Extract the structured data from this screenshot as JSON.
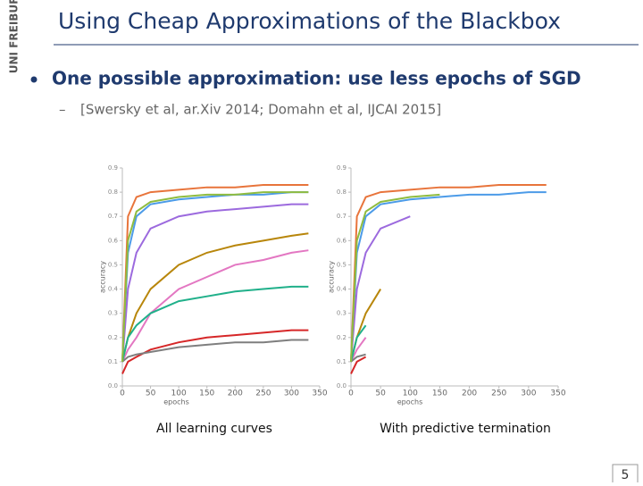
{
  "header": {
    "title": "Using Cheap Approximations of the Blackbox",
    "logo": "UNI FREIBURG"
  },
  "bullets": [
    {
      "text": "One possible approximation: use less epochs of SGD",
      "sub": "[Swersky et al, ar.Xiv 2014; Domahn et al, IJCAI 2015]"
    }
  ],
  "chart_data": [
    {
      "type": "line",
      "caption": "All learning curves",
      "xlabel": "epochs",
      "ylabel": "accuracy",
      "xlim": [
        0,
        350
      ],
      "ylim": [
        0,
        0.9
      ],
      "xticks": [
        0,
        50,
        100,
        150,
        200,
        250,
        300,
        350
      ],
      "yticks": [
        {
          "value": 0,
          "label": "0.0"
        },
        0.1,
        0.2,
        0.3,
        0.4,
        0.5,
        0.6,
        0.7,
        0.8,
        0.9
      ],
      "x": [
        0,
        10,
        25,
        50,
        100,
        150,
        200,
        250,
        300,
        330
      ],
      "series": [
        {
          "color": "#e8743b",
          "values": [
            0.1,
            0.7,
            0.78,
            0.8,
            0.81,
            0.82,
            0.82,
            0.83,
            0.83,
            0.83
          ]
        },
        {
          "color": "#4c9be8",
          "values": [
            0.1,
            0.55,
            0.7,
            0.75,
            0.77,
            0.78,
            0.79,
            0.79,
            0.8,
            0.8
          ]
        },
        {
          "color": "#9c6ade",
          "values": [
            0.1,
            0.4,
            0.55,
            0.65,
            0.7,
            0.72,
            0.73,
            0.74,
            0.75,
            0.75
          ]
        },
        {
          "color": "#b8860b",
          "values": [
            0.1,
            0.2,
            0.3,
            0.4,
            0.5,
            0.55,
            0.58,
            0.6,
            0.62,
            0.63
          ]
        },
        {
          "color": "#e377c2",
          "values": [
            0.1,
            0.15,
            0.2,
            0.3,
            0.4,
            0.45,
            0.5,
            0.52,
            0.55,
            0.56
          ]
        },
        {
          "color": "#20b08a",
          "values": [
            0.1,
            0.2,
            0.25,
            0.3,
            0.35,
            0.37,
            0.39,
            0.4,
            0.41,
            0.41
          ]
        },
        {
          "color": "#d62728",
          "values": [
            0.05,
            0.1,
            0.12,
            0.15,
            0.18,
            0.2,
            0.21,
            0.22,
            0.23,
            0.23
          ]
        },
        {
          "color": "#7f7f7f",
          "values": [
            0.1,
            0.12,
            0.13,
            0.14,
            0.16,
            0.17,
            0.18,
            0.18,
            0.19,
            0.19
          ]
        },
        {
          "color": "#8fbc3f",
          "values": [
            0.1,
            0.6,
            0.72,
            0.76,
            0.78,
            0.79,
            0.79,
            0.8,
            0.8,
            0.8
          ]
        }
      ]
    },
    {
      "type": "line",
      "caption": "With predictive termination",
      "xlabel": "epochs",
      "ylabel": "accuracy",
      "xlim": [
        0,
        350
      ],
      "ylim": [
        0,
        0.9
      ],
      "xticks": [
        0,
        50,
        100,
        150,
        200,
        250,
        300,
        350
      ],
      "yticks": [
        {
          "value": 0,
          "label": "0.0"
        },
        0.1,
        0.2,
        0.3,
        0.4,
        0.5,
        0.6,
        0.7,
        0.8,
        0.9
      ],
      "x": [
        0,
        10,
        25,
        50,
        100,
        150,
        200,
        250,
        300,
        330
      ],
      "series": [
        {
          "color": "#e8743b",
          "values": [
            0.1,
            0.7,
            0.78,
            0.8,
            0.81,
            0.82,
            0.82,
            0.83,
            0.83,
            0.83
          ]
        },
        {
          "color": "#4c9be8",
          "values": [
            0.1,
            0.55,
            0.7,
            0.75,
            0.77,
            0.78,
            0.79,
            0.79,
            0.8,
            0.8
          ]
        },
        {
          "color": "#9c6ade",
          "values": [
            0.1,
            0.4,
            0.55,
            0.65,
            0.7,
            null,
            null,
            null,
            null,
            null
          ]
        },
        {
          "color": "#b8860b",
          "values": [
            0.1,
            0.2,
            0.3,
            0.4,
            null,
            null,
            null,
            null,
            null,
            null
          ]
        },
        {
          "color": "#e377c2",
          "values": [
            0.1,
            0.15,
            0.2,
            null,
            null,
            null,
            null,
            null,
            null,
            null
          ]
        },
        {
          "color": "#20b08a",
          "values": [
            0.1,
            0.2,
            0.25,
            null,
            null,
            null,
            null,
            null,
            null,
            null
          ]
        },
        {
          "color": "#d62728",
          "values": [
            0.05,
            0.1,
            0.12,
            null,
            null,
            null,
            null,
            null,
            null,
            null
          ]
        },
        {
          "color": "#7f7f7f",
          "values": [
            0.1,
            0.12,
            0.13,
            null,
            null,
            null,
            null,
            null,
            null,
            null
          ]
        },
        {
          "color": "#8fbc3f",
          "values": [
            0.1,
            0.6,
            0.72,
            0.76,
            0.78,
            0.79,
            null,
            null,
            null,
            null
          ]
        }
      ]
    }
  ],
  "page_number": "5"
}
